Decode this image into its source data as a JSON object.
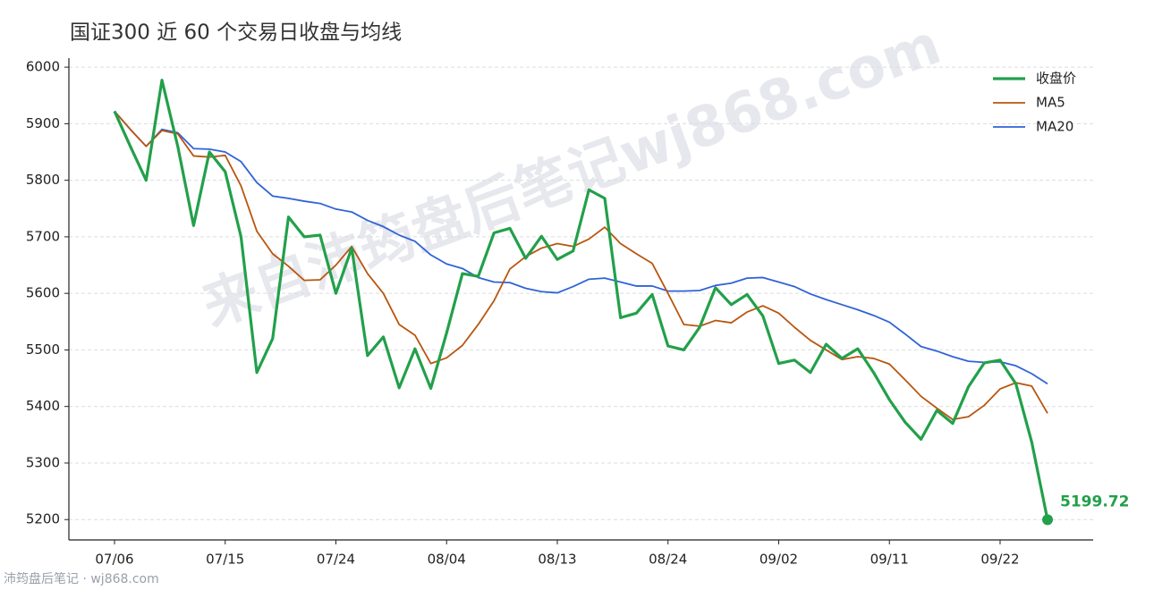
{
  "chart_data": {
    "type": "line",
    "title": "国证300 近 60 个交易日收盘与均线",
    "watermark": "来自沛筠盘后笔记wj868.com",
    "footer": "沛筠盘后笔记 · wj868.com",
    "categories": [
      "07/06",
      null,
      null,
      null,
      null,
      null,
      null,
      "07/15",
      null,
      null,
      null,
      null,
      null,
      null,
      "07/24",
      null,
      null,
      null,
      null,
      null,
      null,
      "08/04",
      null,
      null,
      null,
      null,
      null,
      null,
      "08/13",
      null,
      null,
      null,
      null,
      null,
      null,
      "08/24",
      null,
      null,
      null,
      null,
      null,
      null,
      "09/02",
      null,
      null,
      null,
      null,
      null,
      null,
      "09/11",
      null,
      null,
      null,
      null,
      null,
      null,
      "09/22",
      null,
      null,
      null
    ],
    "series": [
      {
        "name": "收盘价",
        "color": "#22a04a",
        "values": [
          5922,
          5860,
          5800,
          5977,
          5860,
          5720,
          5850,
          5815,
          5700,
          5460,
          5520,
          5735,
          5700,
          5703,
          5600,
          5680,
          5490,
          5523,
          5433,
          5502,
          5432,
          5530,
          5635,
          5630,
          5707,
          5715,
          5662,
          5701,
          5660,
          5675,
          5783,
          5768,
          5557,
          5565,
          5598,
          5507,
          5500,
          5540,
          5610,
          5580,
          5598,
          5560,
          5476,
          5482,
          5460,
          5510,
          5485,
          5502,
          5460,
          5412,
          5372,
          5342,
          5393,
          5370,
          5435,
          5477,
          5482,
          5440,
          5337,
          5199.72
        ]
      },
      {
        "name": "MA5",
        "color": "#b8560f",
        "values": [
          5922,
          5890,
          5860,
          5888,
          5882,
          5843,
          5841,
          5844,
          5790,
          5710,
          5670,
          5648,
          5623,
          5624,
          5650,
          5683,
          5635,
          5600,
          5545,
          5526,
          5476,
          5486,
          5508,
          5545,
          5587,
          5643,
          5665,
          5680,
          5688,
          5683,
          5696,
          5717,
          5688,
          5670,
          5653,
          5600,
          5545,
          5542,
          5552,
          5548,
          5567,
          5578,
          5565,
          5540,
          5517,
          5500,
          5483,
          5488,
          5485,
          5475,
          5447,
          5418,
          5397,
          5377,
          5382,
          5402,
          5431,
          5442,
          5436,
          5388
        ]
      },
      {
        "name": "MA20",
        "color": "#2f63d8",
        "values": [
          5922,
          5890,
          5860,
          5890,
          5884,
          5856,
          5855,
          5850,
          5833,
          5796,
          5772,
          5768,
          5763,
          5759,
          5749,
          5744,
          5729,
          5718,
          5703,
          5692,
          5668,
          5652,
          5644,
          5628,
          5620,
          5619,
          5609,
          5603,
          5601,
          5612,
          5625,
          5627,
          5620,
          5613,
          5613,
          5604,
          5604,
          5605,
          5614,
          5618,
          5627,
          5628,
          5620,
          5612,
          5599,
          5589,
          5580,
          5571,
          5561,
          5549,
          5528,
          5506,
          5498,
          5488,
          5480,
          5478,
          5479,
          5472,
          5458,
          5440
        ]
      }
    ],
    "ylim": [
      5164,
      6016
    ],
    "yticks": [
      5200,
      5300,
      5400,
      5500,
      5600,
      5700,
      5800,
      5900,
      6000
    ],
    "grid": true,
    "legend": "upper right"
  }
}
